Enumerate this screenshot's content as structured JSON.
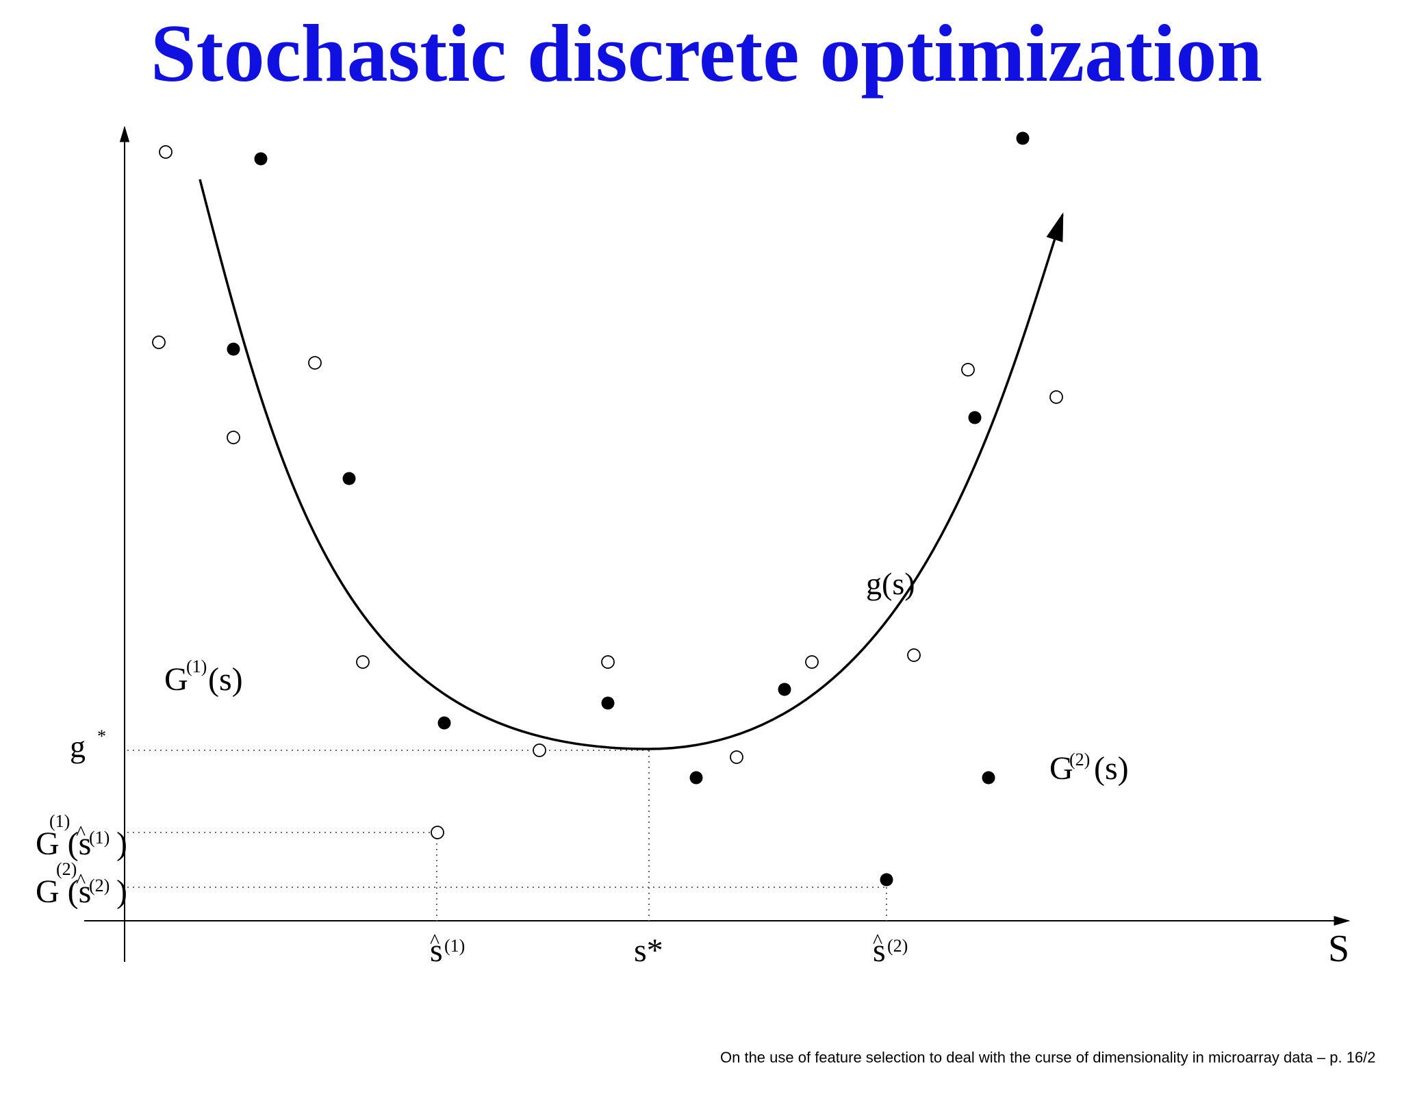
{
  "slide": {
    "title": "Stochastic discrete optimization",
    "footer": "On the use of feature selection to deal with the curse of dimensionality in microarray data – p. 16/2"
  },
  "diagram": {
    "labels": {
      "axis_x": "S",
      "curve": "g(s)",
      "estimate1": "G",
      "estimate1_sup": "(1)",
      "estimate1_arg": "(s)",
      "estimate2": "G",
      "estimate2_sup": "(2)",
      "estimate2_arg": "(s)",
      "g_star": "g",
      "g_star_sup": "*",
      "G1_at_s1_sup": "(1)",
      "G1_at_s1_main": "G (s",
      "G1_at_s1_ssup": "(1)",
      "G1_at_s1_close": ")",
      "G2_at_s2_sup": "(2)",
      "G2_at_s2_main": "G (s",
      "G2_at_s2_ssup": "(2)",
      "G2_at_s2_close": ")",
      "s_hat1": "s",
      "s_hat1_sup": "(1)",
      "s_star": "s*",
      "s_hat2": "s",
      "s_hat2_sup": "(2)",
      "hat": "^"
    },
    "colors": {
      "title": "#1010e0",
      "ink": "#000000"
    }
  }
}
